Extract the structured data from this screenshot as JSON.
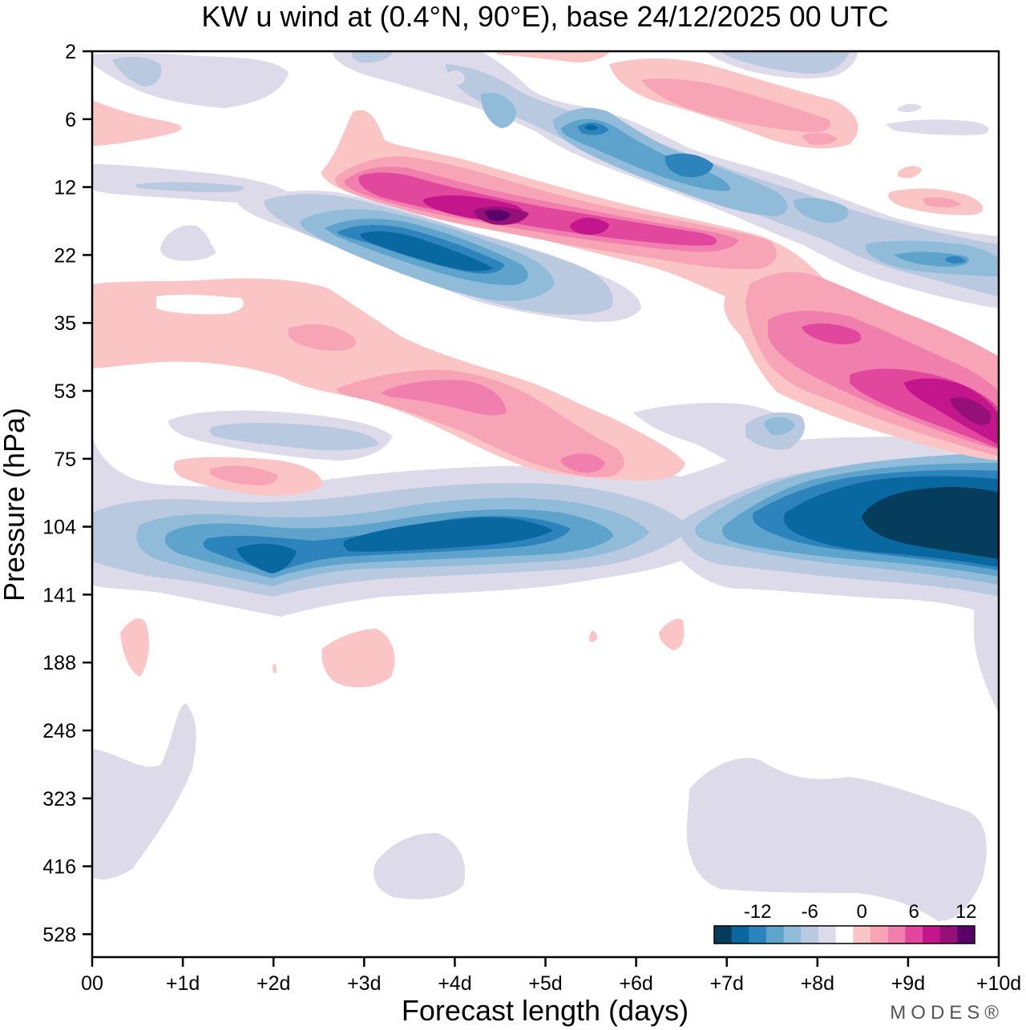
{
  "chart_data": {
    "type": "heatmap",
    "title": "KW u wind at (0.4°N, 90°E),  base 24/12/2025  00 UTC",
    "xlabel": "Forecast length (days)",
    "ylabel": "Pressure (hPa)",
    "x_tick_labels": [
      "00",
      "+1d",
      "+2d",
      "+3d",
      "+4d",
      "+5d",
      "+6d",
      "+7d",
      "+8d",
      "+9d",
      "+10d"
    ],
    "x_range_days": [
      0,
      10
    ],
    "y_tick_labels": [
      "2",
      "6",
      "12",
      "22",
      "35",
      "53",
      "75",
      "104",
      "141",
      "188",
      "248",
      "323",
      "416",
      "528"
    ],
    "y_axis": "log-pressure, top = 2 hPa",
    "colorbar": {
      "tick_labels": [
        "-12",
        "-6",
        "0",
        "6",
        "12"
      ],
      "levels_min": -16,
      "level_step": 2,
      "colors": [
        "#063d5c",
        "#0a68a0",
        "#2d84bd",
        "#5da3cc",
        "#91bcd9",
        "#b9c9e0",
        "#dddaea",
        "#ffffff",
        "#fbc5c6",
        "#f7a5b6",
        "#f17fae",
        "#e1479c",
        "#c4168c",
        "#951079",
        "#5b0069"
      ]
    },
    "features": [
      {
        "label": "westerly band",
        "u": 14,
        "days": [
          1.5,
          6.5
        ],
        "hPa": [
          12,
          22
        ]
      },
      {
        "label": "easterly band",
        "u": -10,
        "days": [
          2.5,
          5.5
        ],
        "hPa": [
          15,
          28
        ]
      },
      {
        "label": "westerly band",
        "u": 12,
        "days": [
          7.5,
          10
        ],
        "hPa": [
          35,
          75
        ]
      },
      {
        "label": "easterly band",
        "u": -16,
        "days": [
          8.5,
          10
        ],
        "hPa": [
          90,
          130
        ]
      },
      {
        "label": "easterly band",
        "u": -10,
        "days": [
          0.5,
          6
        ],
        "hPa": [
          95,
          135
        ]
      },
      {
        "label": "westerly band",
        "u": 6,
        "days": [
          3,
          6
        ],
        "hPa": [
          45,
          80
        ]
      }
    ]
  },
  "brand": "MODES®"
}
